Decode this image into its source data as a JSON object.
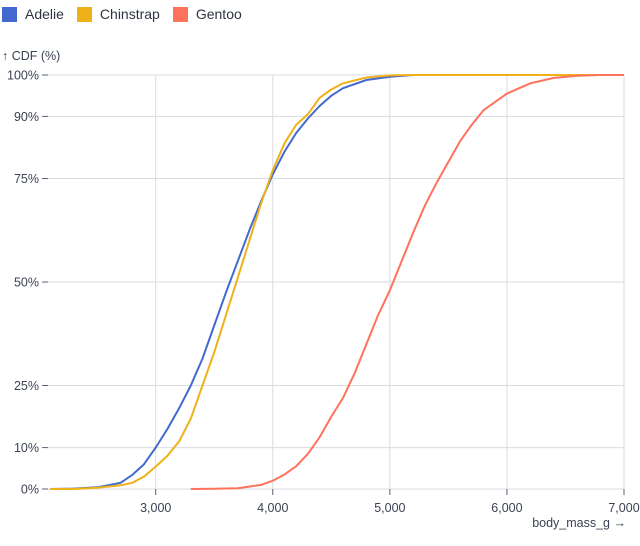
{
  "chart_data": {
    "type": "line",
    "title": "",
    "xlabel": "body_mass_g →",
    "ylabel": "↑ CDF (%)",
    "xlim": [
      2080,
      7000
    ],
    "ylim": [
      0,
      100
    ],
    "grid": true,
    "legend_placement": "top-left",
    "x_ticks": [
      3000,
      4000,
      5000,
      6000,
      7000
    ],
    "x_tick_labels": [
      "3,000",
      "4,000",
      "5,000",
      "6,000",
      "7,000"
    ],
    "y_ticks": [
      0,
      10,
      25,
      50,
      75,
      90,
      100
    ],
    "y_tick_labels": [
      "0%",
      "10%",
      "25%",
      "50%",
      "75%",
      "90%",
      "100%"
    ],
    "series": [
      {
        "name": "Adelie",
        "color": "#4269d0",
        "x": [
          2100,
          2300,
          2500,
          2700,
          2800,
          2900,
          3000,
          3100,
          3200,
          3300,
          3400,
          3500,
          3600,
          3700,
          3800,
          3900,
          4000,
          4100,
          4200,
          4300,
          4400,
          4500,
          4600,
          4800,
          5000,
          5200,
          7000
        ],
        "y": [
          0,
          0.1,
          0.4,
          1.5,
          3.4,
          6,
          10,
          14.5,
          19.5,
          25,
          31.5,
          39.5,
          47.5,
          55,
          62.5,
          69.5,
          76,
          81.5,
          86,
          89.5,
          92.5,
          95,
          96.8,
          98.8,
          99.6,
          100,
          100
        ]
      },
      {
        "name": "Chinstrap",
        "color": "#efb118",
        "x": [
          2100,
          2300,
          2500,
          2700,
          2800,
          2900,
          3000,
          3100,
          3200,
          3300,
          3400,
          3500,
          3600,
          3700,
          3800,
          3900,
          4000,
          4100,
          4200,
          4300,
          4400,
          4500,
          4600,
          4800,
          5000,
          5200,
          7000
        ],
        "y": [
          0,
          0,
          0.3,
          0.9,
          1.5,
          3,
          5.4,
          8,
          11.5,
          17,
          25,
          33,
          42,
          51,
          60,
          69,
          77,
          83.5,
          88,
          90.5,
          94.5,
          96.5,
          98,
          99.4,
          99.9,
          100,
          100
        ]
      },
      {
        "name": "Gentoo",
        "color": "#ff725c",
        "x": [
          3300,
          3500,
          3700,
          3900,
          4000,
          4100,
          4200,
          4300,
          4400,
          4500,
          4600,
          4700,
          4800,
          4900,
          5000,
          5100,
          5200,
          5300,
          5400,
          5500,
          5600,
          5700,
          5800,
          5900,
          6000,
          6200,
          6400,
          6600,
          6800,
          7000
        ],
        "y": [
          0,
          0.05,
          0.2,
          1,
          2,
          3.5,
          5.5,
          8.5,
          12.5,
          17.5,
          22,
          28,
          35,
          42,
          48,
          55,
          62,
          68.5,
          74,
          79,
          84,
          88,
          91.5,
          93.5,
          95.5,
          98,
          99.3,
          99.8,
          100,
          100
        ]
      }
    ]
  }
}
